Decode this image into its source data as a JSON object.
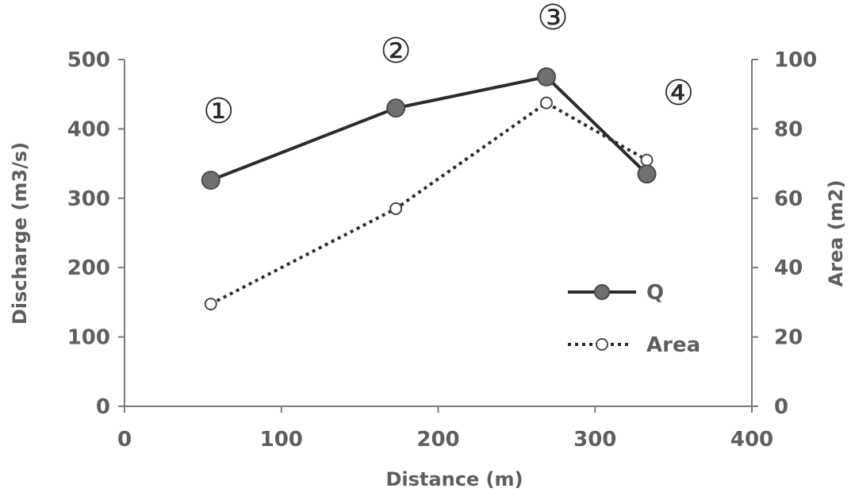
{
  "chart_data": {
    "type": "line",
    "xlabel": "Distance (m)",
    "ylabel": "Discharge (m3/s)",
    "y2label": "Area (m2)",
    "xlim": [
      0,
      400
    ],
    "ylim": [
      0,
      500
    ],
    "y2lim": [
      0,
      100
    ],
    "xticks": [
      "0",
      "100",
      "200",
      "300",
      "400"
    ],
    "yticks": [
      "0",
      "100",
      "200",
      "300",
      "400",
      "500"
    ],
    "y2ticks": [
      "0",
      "20",
      "40",
      "60",
      "80",
      "100"
    ],
    "grid": false,
    "legend": "bottom-right",
    "series": [
      {
        "name": "Q",
        "axis": "left",
        "style": "solid-filled-markers",
        "color": "#2b2b2b",
        "x": [
          55,
          173,
          269,
          333
        ],
        "y": [
          326,
          430,
          475,
          335
        ]
      },
      {
        "name": "Area",
        "axis": "right",
        "style": "dotted-open-markers",
        "color": "#2b2b2b",
        "x": [
          55,
          173,
          269,
          333
        ],
        "y": [
          29.5,
          57,
          87.5,
          71
        ]
      }
    ],
    "annotations": [
      "①",
      "②",
      "③",
      "④"
    ]
  }
}
